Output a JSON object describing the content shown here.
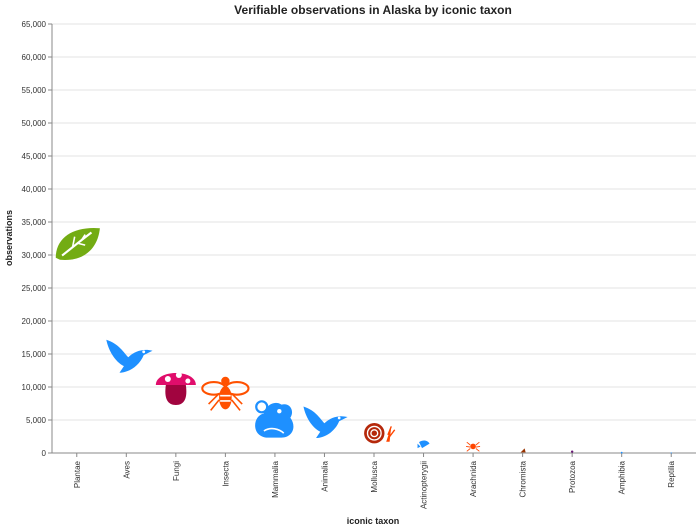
{
  "chart_data": {
    "type": "scatter",
    "title": "Verifiable observations in Alaska by iconic taxon",
    "xlabel": "iconic taxon",
    "ylabel": "observations",
    "ylim": [
      0,
      65000
    ],
    "y_ticks": [
      "0",
      "5,000",
      "10,000",
      "15,000",
      "20,000",
      "25,000",
      "30,000",
      "35,000",
      "40,000",
      "45,000",
      "50,000",
      "55,000",
      "60,000",
      "65,000"
    ],
    "grid": true,
    "categories": [
      "Plantae",
      "Aves",
      "Fungi",
      "Insecta",
      "Mammalia",
      "Animalia",
      "Mollusca",
      "Actinopterygii",
      "Arachnida",
      "Chromista",
      "Protozoa",
      "Amphibia",
      "Reptilia"
    ],
    "values": [
      31500,
      14500,
      10000,
      9000,
      5000,
      4500,
      3000,
      1200,
      1000,
      400,
      200,
      50,
      10
    ],
    "markers": [
      {
        "icon": "leaf-icon",
        "color": "#73ac13"
      },
      {
        "icon": "bird-icon",
        "color": "#1e90ff"
      },
      {
        "icon": "mushroom-icon",
        "color": "#e00d6b"
      },
      {
        "icon": "bee-icon",
        "color": "#ff5100"
      },
      {
        "icon": "mouse-icon",
        "color": "#1e90ff"
      },
      {
        "icon": "bird-icon",
        "color": "#1e90ff"
      },
      {
        "icon": "snail-icon",
        "color": "#ff4500"
      },
      {
        "icon": "fish-icon",
        "color": "#1e90ff"
      },
      {
        "icon": "spider-icon",
        "color": "#ff4500"
      },
      {
        "icon": "chromista-icon",
        "color": "#993300"
      },
      {
        "icon": "protozoa-icon",
        "color": "#691776"
      },
      {
        "icon": "frog-icon",
        "color": "#1e90ff"
      },
      {
        "icon": "lizard-icon",
        "color": "#1e90ff"
      }
    ]
  }
}
